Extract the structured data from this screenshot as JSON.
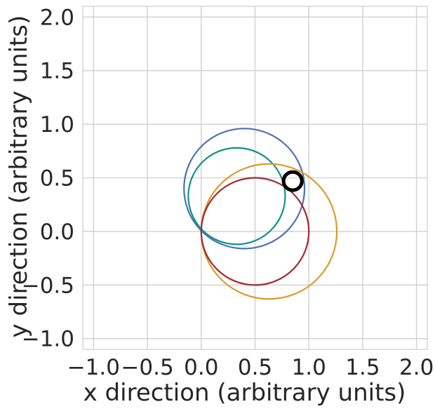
{
  "chart_data": {
    "type": "scatter",
    "title": "",
    "xlabel": "x direction (arbitrary units)",
    "ylabel": "y direction (arbitrary units)",
    "xlim": [
      -1.1,
      2.1
    ],
    "ylim": [
      -1.1,
      2.1
    ],
    "grid": true,
    "x_ticks": [
      -1.0,
      -0.5,
      0.0,
      0.5,
      1.0,
      1.5,
      2.0
    ],
    "y_ticks": [
      -1.0,
      -0.5,
      0.0,
      0.5,
      1.0,
      1.5,
      2.0
    ],
    "x_tick_labels": [
      "−1.0",
      "−0.5",
      "0.0",
      "0.5",
      "1.0",
      "1.5",
      "2.0"
    ],
    "y_tick_labels": [
      "−1.0",
      "−0.5",
      "0.0",
      "0.5",
      "1.0",
      "1.5",
      "2.0"
    ],
    "circles": [
      {
        "cx": 0.4,
        "cy": 0.4,
        "r": 0.56,
        "color": "#4c72b0"
      },
      {
        "cx": 0.33,
        "cy": 0.33,
        "r": 0.45,
        "color": "#0f9488"
      },
      {
        "cx": 0.63,
        "cy": 0.0,
        "r": 0.63,
        "color": "#dd9a2c"
      },
      {
        "cx": 0.5,
        "cy": 0.0,
        "r": 0.5,
        "color": "#a12a2f"
      }
    ],
    "marker": {
      "x": 0.85,
      "y": 0.47,
      "r": 0.085,
      "color": "#000000"
    }
  }
}
